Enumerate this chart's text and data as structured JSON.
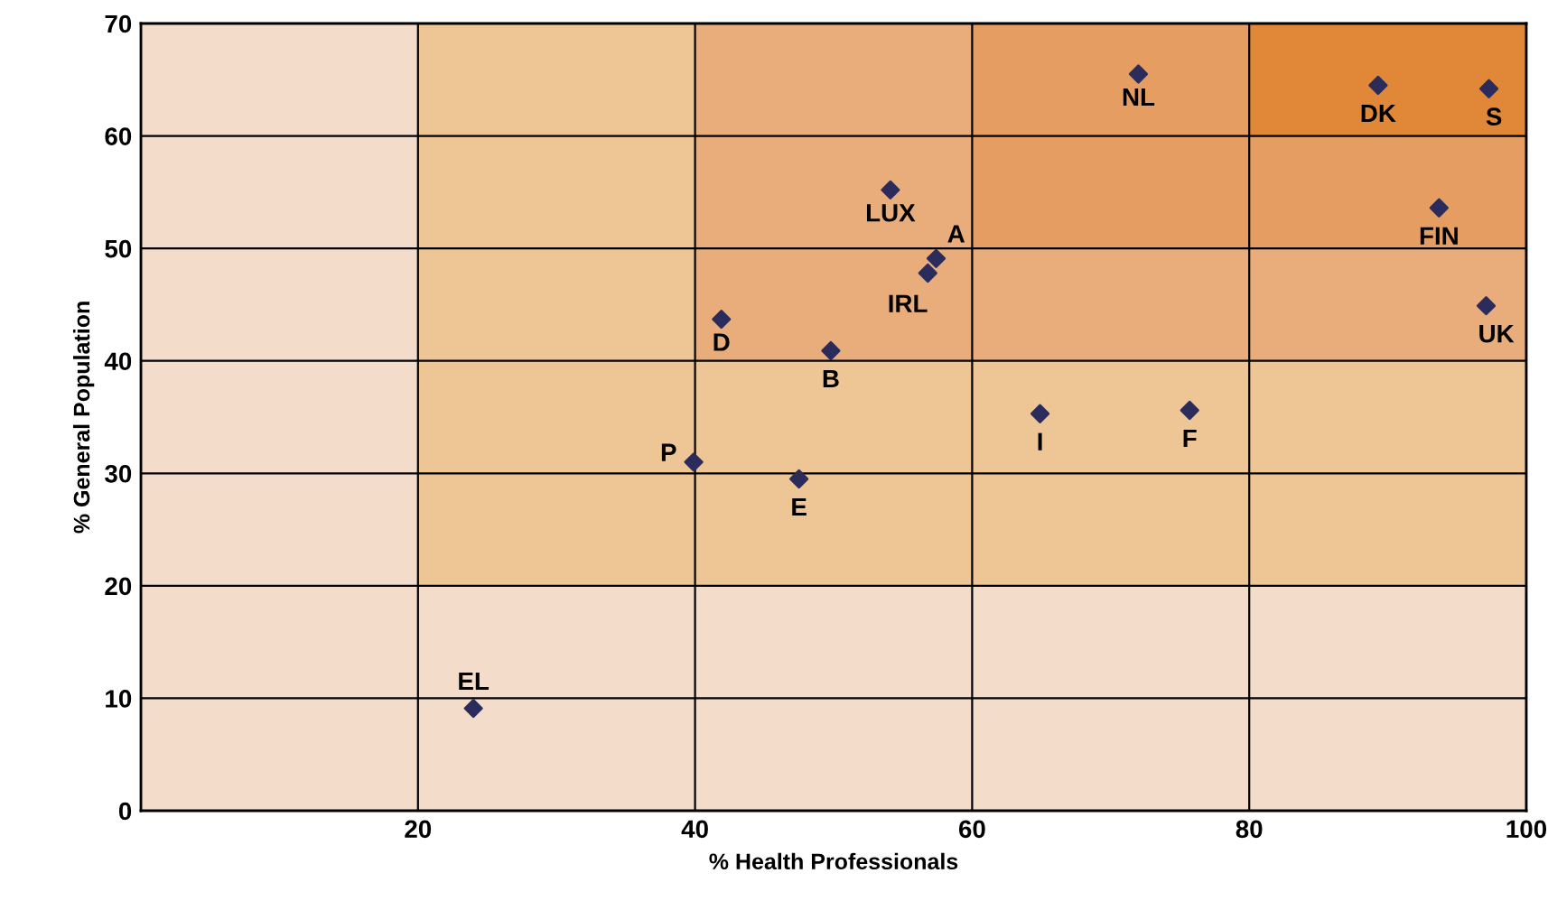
{
  "chart_data": {
    "type": "scatter",
    "xlabel": "% Health Professionals",
    "ylabel": "% General Population",
    "x": [
      24.0,
      39.9,
      47.5,
      41.9,
      49.8,
      54.1,
      57.4,
      56.8,
      64.9,
      75.7,
      72.0,
      89.3,
      97.3,
      93.7,
      97.1
    ],
    "series": [
      {
        "color": "#2b2b5c",
        "values": [
          9.1,
          31.0,
          29.5,
          43.7,
          40.9,
          55.2,
          49.1,
          47.8,
          35.3,
          35.6,
          65.5,
          64.5,
          64.2,
          53.6,
          44.9
        ]
      }
    ],
    "annotations": [
      {
        "text": "EL",
        "x": 24.0,
        "y": 9.1
      },
      {
        "text": "P",
        "x": 39.9,
        "y": 31.0
      },
      {
        "text": "E",
        "x": 47.5,
        "y": 29.5
      },
      {
        "text": "D",
        "x": 41.9,
        "y": 43.7
      },
      {
        "text": "B",
        "x": 49.8,
        "y": 40.9
      },
      {
        "text": "LUX",
        "x": 54.1,
        "y": 55.2
      },
      {
        "text": "A",
        "x": 57.4,
        "y": 49.1
      },
      {
        "text": "IRL",
        "x": 56.8,
        "y": 47.8
      },
      {
        "text": "I",
        "x": 64.9,
        "y": 35.3
      },
      {
        "text": "F",
        "x": 75.7,
        "y": 35.6
      },
      {
        "text": "NL",
        "x": 72.0,
        "y": 65.5
      },
      {
        "text": "DK",
        "x": 89.3,
        "y": 64.5
      },
      {
        "text": "S",
        "x": 97.3,
        "y": 64.2
      },
      {
        "text": "FIN",
        "x": 93.7,
        "y": 53.6
      },
      {
        "text": "UK",
        "x": 97.1,
        "y": 44.9
      }
    ],
    "xlim": [
      0,
      100
    ],
    "ylim": [
      0,
      70
    ],
    "xticks": [
      {
        "value": 0,
        "label": null
      },
      20,
      40,
      60,
      80,
      100
    ],
    "yticks": [
      0,
      10,
      20,
      30,
      40,
      50,
      60,
      70
    ],
    "grid": true,
    "marker": "diamond",
    "legend": false
  }
}
